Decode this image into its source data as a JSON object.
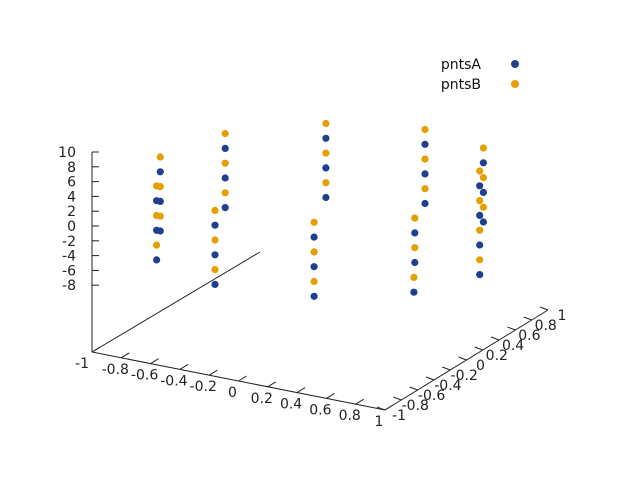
{
  "chart_data": {
    "type": "scatter",
    "title": "",
    "xlabel": "",
    "ylabel": "",
    "zlabel": "",
    "projection": "3d",
    "xlim": [
      -1,
      1
    ],
    "ylim": [
      -1,
      1
    ],
    "zlim": [
      -10,
      10
    ],
    "x_ticks": [
      "-1",
      "-0.8",
      "-0.6",
      "-0.4",
      "-0.2",
      "0",
      "0.2",
      "0.4",
      "0.6",
      "0.8",
      "1"
    ],
    "y_ticks": [
      "-1",
      "-0.8",
      "-0.6",
      "-0.4",
      "-0.2",
      "0",
      "0.2",
      "0.4",
      "0.6",
      "0.8",
      "1"
    ],
    "z_ticks": [
      "-8",
      "-6",
      "-4",
      "-2",
      "0",
      "2",
      "4",
      "6",
      "8",
      "10"
    ],
    "grid": false,
    "legend_position": "top-right",
    "series": [
      {
        "name": "pntsA",
        "color": "#1f3f8f",
        "description_shape": "helix of radius 1, centered at origin",
        "x": [
          1,
          0.8,
          0.31,
          -0.31,
          -0.81,
          -1,
          -0.81,
          -0.31,
          0.31,
          0.81,
          1,
          0.81,
          0.31,
          -0.31,
          -0.81,
          -1,
          -0.81,
          -0.31,
          0.31,
          0.81,
          1,
          0.81,
          0.31,
          -0.31,
          -0.81,
          -1,
          -0.81,
          -0.31,
          0.31,
          0.81,
          1
        ],
        "y": [
          0,
          0.59,
          0.95,
          0.95,
          0.59,
          0,
          -0.59,
          -0.95,
          -0.95,
          -0.59,
          0,
          0.59,
          0.95,
          0.95,
          0.59,
          0,
          -0.59,
          -0.95,
          -0.95,
          -0.59,
          0,
          0.59,
          0.95,
          0.95,
          0.59,
          0,
          -0.59,
          -0.95,
          -0.95,
          -0.59,
          0
        ],
        "z": [
          -3,
          -2.6,
          -2.2,
          -1.8,
          -1.4,
          -1,
          -0.6,
          -0.2,
          0.2,
          0.6,
          1,
          1.4,
          1.8,
          2.2,
          2.6,
          3,
          3.4,
          3.8,
          4.2,
          4.6,
          5,
          5.4,
          5.8,
          6.2,
          6.6,
          7,
          7.4,
          7.8,
          8.2,
          8.6,
          9
        ]
      },
      {
        "name": "pntsB",
        "color": "#e69f00",
        "description_shape": "helix of radius 1, centered at origin",
        "x": [
          1,
          0.8,
          0.31,
          -0.31,
          -0.81,
          -1,
          -0.81,
          -0.31,
          0.31,
          0.81,
          1,
          0.81,
          0.31,
          -0.31,
          -0.81,
          -1,
          -0.81,
          -0.31,
          0.31,
          0.81,
          1,
          0.81,
          0.31,
          -0.31,
          -0.81,
          -1,
          -0.81,
          -0.31,
          0.31,
          0.81,
          1
        ],
        "y": [
          0,
          0.59,
          0.95,
          0.95,
          0.59,
          0,
          -0.59,
          -0.95,
          -0.95,
          -0.59,
          0,
          0.59,
          0.95,
          0.95,
          0.59,
          0,
          -0.59,
          -0.95,
          -0.95,
          -0.59,
          0,
          0.59,
          0.95,
          0.95,
          0.59,
          0,
          -0.59,
          -0.95,
          -0.95,
          -0.59,
          0
        ],
        "z": [
          -1,
          -0.6,
          -0.2,
          0.2,
          0.6,
          1,
          1.4,
          1.8,
          2.2,
          2.6,
          3,
          3.4,
          3.8,
          4.2,
          4.6,
          5,
          5.4,
          5.8,
          6.2,
          6.6,
          7,
          7.4,
          7.8,
          8.2,
          8.6,
          9,
          9.4,
          9.8,
          10.2,
          10.6,
          11
        ]
      }
    ]
  }
}
